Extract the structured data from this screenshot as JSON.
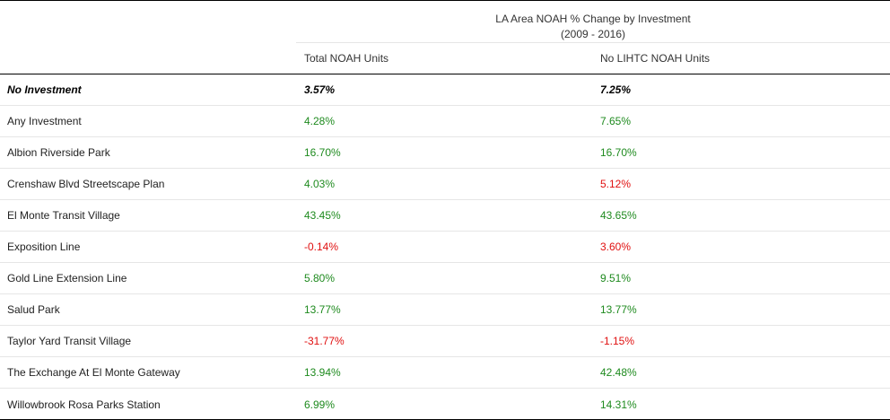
{
  "title": {
    "line1": "LA Area NOAH % Change by Investment",
    "line2": "(2009 - 2016)"
  },
  "columns": {
    "label": "",
    "total": "Total NOAH Units",
    "no_lihtc": "No LIHTC NOAH Units"
  },
  "colors": {
    "positive": "#1e8a1e",
    "negative": "#e01010",
    "neutral": "#000000"
  },
  "rows": [
    {
      "label": "No Investment",
      "total": "3.57%",
      "total_status": "neutral",
      "no_lihtc": "7.25%",
      "no_lihtc_status": "neutral",
      "emphasis": true
    },
    {
      "label": "Any Investment",
      "total": "4.28%",
      "total_status": "positive",
      "no_lihtc": "7.65%",
      "no_lihtc_status": "positive",
      "emphasis": false
    },
    {
      "label": "Albion Riverside Park",
      "total": "16.70%",
      "total_status": "positive",
      "no_lihtc": "16.70%",
      "no_lihtc_status": "positive",
      "emphasis": false
    },
    {
      "label": "Crenshaw Blvd Streetscape Plan",
      "total": "4.03%",
      "total_status": "positive",
      "no_lihtc": "5.12%",
      "no_lihtc_status": "negative",
      "emphasis": false
    },
    {
      "label": "El Monte Transit Village",
      "total": "43.45%",
      "total_status": "positive",
      "no_lihtc": "43.65%",
      "no_lihtc_status": "positive",
      "emphasis": false
    },
    {
      "label": "Exposition Line",
      "total": "-0.14%",
      "total_status": "negative",
      "no_lihtc": "3.60%",
      "no_lihtc_status": "negative",
      "emphasis": false
    },
    {
      "label": "Gold Line Extension Line",
      "total": "5.80%",
      "total_status": "positive",
      "no_lihtc": "9.51%",
      "no_lihtc_status": "positive",
      "emphasis": false
    },
    {
      "label": "Salud Park",
      "total": "13.77%",
      "total_status": "positive",
      "no_lihtc": "13.77%",
      "no_lihtc_status": "positive",
      "emphasis": false
    },
    {
      "label": "Taylor Yard Transit Village",
      "total": "-31.77%",
      "total_status": "negative",
      "no_lihtc": "-1.15%",
      "no_lihtc_status": "negative",
      "emphasis": false
    },
    {
      "label": "The Exchange At El Monte Gateway",
      "total": "13.94%",
      "total_status": "positive",
      "no_lihtc": "42.48%",
      "no_lihtc_status": "positive",
      "emphasis": false
    },
    {
      "label": "Willowbrook Rosa Parks Station",
      "total": "6.99%",
      "total_status": "positive",
      "no_lihtc": "14.31%",
      "no_lihtc_status": "positive",
      "emphasis": false
    }
  ]
}
